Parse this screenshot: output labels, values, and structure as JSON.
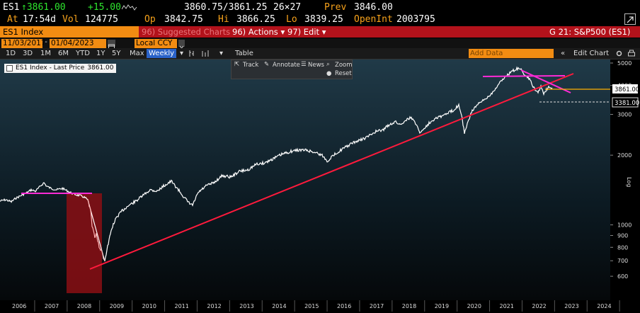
{
  "quote": {
    "ticker": "ES1",
    "last": "↑3861.00",
    "change": "+15.00",
    "bid_ask": "3860.75/3861.25",
    "size": "26×27",
    "prev_label": "Prev",
    "prev": "3846.00",
    "time_label": "At",
    "time": "17:54d",
    "vol_label": "Vol",
    "vol": "124775",
    "open_label": "Op",
    "open": "3842.75",
    "hi_label": "Hi",
    "hi": "3866.25",
    "lo_label": "Lo",
    "lo": "3839.25",
    "oi_label": "OpenInt",
    "oi": "2003795"
  },
  "menu": {
    "security": "ES1 Index",
    "suggested": "96) Suggested Charts",
    "actions": "96) Actions ▾",
    "edit": "97) Edit ▾",
    "chart_title": "G 21: S&P500 (ES1)"
  },
  "dates": {
    "start": "11/03/2017",
    "end": "01/04/2023",
    "currency": "Local CCY"
  },
  "toolbar": {
    "periods": [
      "1D",
      "3D",
      "1M",
      "6M",
      "YTD",
      "1Y",
      "5Y",
      "Max"
    ],
    "frequency": "Weekly",
    "table": "Table",
    "add_data": "Add Data",
    "edit_chart": "Edit Chart"
  },
  "tools": {
    "track": "Track",
    "annotate": "Annotate",
    "news": "News",
    "zoom": "Zoom",
    "reset": "Reset"
  },
  "legend": {
    "label": "ES1 Index - Last Price",
    "value": "3861.00"
  },
  "price_tags": {
    "last": "3861.00",
    "level": "3381.00"
  },
  "axis": {
    "scale_label": "Log",
    "y_ticks": [
      "5000",
      "4000",
      "3000",
      "2000",
      "1000",
      "900",
      "800",
      "700",
      "600"
    ],
    "x_ticks": [
      "2006",
      "2007",
      "2008",
      "2009",
      "2010",
      "2011",
      "2012",
      "2013",
      "2014",
      "2015",
      "2016",
      "2017",
      "2018",
      "2019",
      "2020",
      "2021",
      "2022",
      "2023",
      "2024"
    ]
  },
  "colors": {
    "amber": "#f7a21b",
    "red_bar": "#b3121b",
    "trendline": "#ff1a3c",
    "magenta": "#ff2bd6",
    "price_line": "#ffffff",
    "last_line": "#ffb000",
    "crash_zone": "#8b0f14"
  }
}
